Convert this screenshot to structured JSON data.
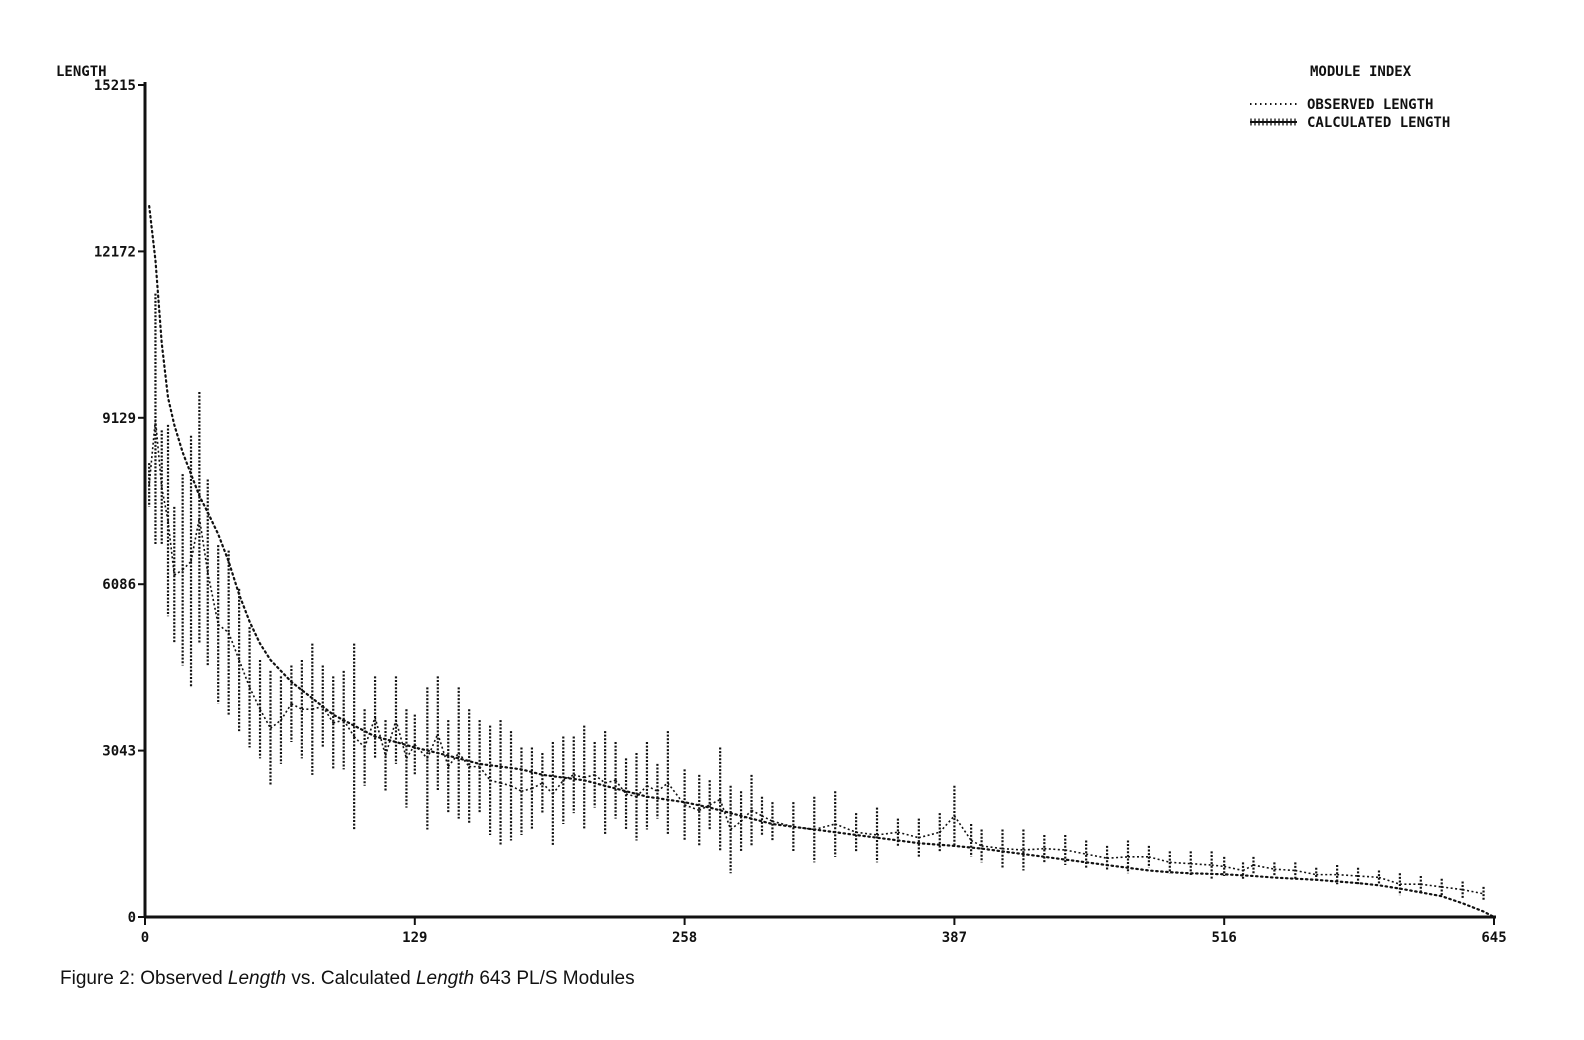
{
  "chart_data": {
    "type": "line",
    "ylabel": "LENGTH",
    "xlabel": "MODULE INDEX",
    "xlim": [
      0,
      645
    ],
    "ylim": [
      0,
      15215
    ],
    "x_ticks": [
      "0",
      "129",
      "258",
      "387",
      "516",
      "645"
    ],
    "y_ticks": [
      "0",
      "3043",
      "6086",
      "9129",
      "12172",
      "15215"
    ],
    "legend": {
      "placement": "top-right",
      "entries": [
        "OBSERVED LENGTH",
        "CALCULATED LENGTH"
      ]
    },
    "series": [
      {
        "name": "OBSERVED LENGTH",
        "style": "dotted",
        "x": [
          2,
          5,
          8,
          11,
          14,
          18,
          22,
          26,
          30,
          35,
          40,
          45,
          50,
          55,
          60,
          65,
          70,
          80,
          90,
          100,
          110,
          120,
          129,
          140,
          150,
          160,
          170,
          180,
          190,
          200,
          210,
          220,
          230,
          240,
          258,
          270,
          280,
          290,
          300,
          310,
          320,
          330,
          340,
          350,
          360,
          370,
          387,
          400,
          410,
          420,
          430,
          440,
          450,
          460,
          470,
          480,
          490,
          500,
          516,
          530,
          540,
          550,
          560,
          570,
          580,
          590,
          600,
          610,
          620,
          630,
          640,
          645
        ],
        "y": [
          13000,
          12000,
          10500,
          9500,
          9000,
          8500,
          8100,
          7700,
          7400,
          7000,
          6500,
          5900,
          5400,
          5000,
          4700,
          4500,
          4300,
          4000,
          3700,
          3500,
          3300,
          3200,
          3100,
          3000,
          2900,
          2800,
          2750,
          2700,
          2600,
          2550,
          2500,
          2400,
          2300,
          2200,
          2100,
          2000,
          1900,
          1800,
          1700,
          1650,
          1600,
          1550,
          1500,
          1450,
          1400,
          1350,
          1300,
          1250,
          1200,
          1150,
          1100,
          1050,
          1000,
          950,
          900,
          850,
          820,
          800,
          780,
          750,
          720,
          700,
          680,
          650,
          620,
          580,
          520,
          450,
          380,
          250,
          100,
          0
        ]
      },
      {
        "name": "CALCULATED LENGTH",
        "style": "hatched",
        "x": [
          2,
          5,
          8,
          11,
          14,
          18,
          22,
          26,
          30,
          35,
          40,
          45,
          50,
          55,
          60,
          65,
          70,
          75,
          80,
          85,
          90,
          95,
          100,
          105,
          110,
          115,
          120,
          125,
          129,
          135,
          140,
          145,
          150,
          155,
          160,
          165,
          170,
          175,
          180,
          185,
          190,
          195,
          200,
          205,
          210,
          215,
          220,
          225,
          230,
          235,
          240,
          245,
          250,
          258,
          265,
          270,
          275,
          280,
          285,
          290,
          295,
          300,
          310,
          320,
          330,
          340,
          350,
          360,
          370,
          380,
          387,
          395,
          400,
          410,
          420,
          430,
          440,
          450,
          460,
          470,
          480,
          490,
          500,
          510,
          516,
          525,
          530,
          540,
          550,
          560,
          570,
          580,
          590,
          600,
          610,
          620,
          630,
          640
        ],
        "lo": [
          7500,
          6800,
          6800,
          5500,
          5000,
          4600,
          4200,
          5000,
          4600,
          3900,
          3700,
          3400,
          3100,
          2900,
          2400,
          2800,
          3200,
          2900,
          2600,
          3100,
          2700,
          2700,
          1600,
          2400,
          2900,
          2300,
          2800,
          2000,
          2600,
          1600,
          2300,
          1900,
          1800,
          1700,
          1900,
          1500,
          1300,
          1400,
          1500,
          1600,
          1900,
          1300,
          1700,
          1900,
          1600,
          2000,
          1500,
          1800,
          1600,
          1400,
          1600,
          1800,
          1500,
          1400,
          1300,
          1600,
          1200,
          800,
          1200,
          1300,
          1500,
          1400,
          1200,
          1000,
          1100,
          1200,
          1000,
          1300,
          1100,
          1200,
          1300,
          1100,
          1000,
          900,
          850,
          1000,
          950,
          900,
          850,
          800,
          900,
          800,
          750,
          700,
          750,
          700,
          800,
          750,
          700,
          650,
          600,
          600,
          600,
          400,
          450,
          400,
          350,
          300
        ],
        "hi": [
          8300,
          11400,
          8900,
          9000,
          7500,
          8100,
          8800,
          9600,
          8000,
          6800,
          6700,
          6000,
          5300,
          4700,
          4500,
          4400,
          4600,
          4700,
          5000,
          4600,
          4400,
          4500,
          5000,
          3800,
          4400,
          3600,
          4400,
          3800,
          3700,
          4200,
          4400,
          3600,
          4200,
          3800,
          3600,
          3500,
          3600,
          3400,
          3100,
          3100,
          3000,
          3200,
          3300,
          3300,
          3500,
          3200,
          3400,
          3200,
          2900,
          3000,
          3200,
          2800,
          3400,
          2700,
          2600,
          2500,
          3100,
          2400,
          2300,
          2600,
          2200,
          2100,
          2100,
          2200,
          2300,
          1900,
          2000,
          1800,
          1800,
          1900,
          2400,
          1700,
          1600,
          1600,
          1600,
          1500,
          1500,
          1400,
          1300,
          1400,
          1300,
          1200,
          1200,
          1200,
          1100,
          1000,
          1100,
          1000,
          1000,
          900,
          950,
          900,
          850,
          800,
          750,
          700,
          650,
          550
        ]
      }
    ]
  },
  "caption": {
    "prefix": "Figure 2:  Observed ",
    "em1": "Length",
    "mid": " vs. Calculated ",
    "em2": "Length",
    "suffix": " 643 PL/S Modules"
  }
}
